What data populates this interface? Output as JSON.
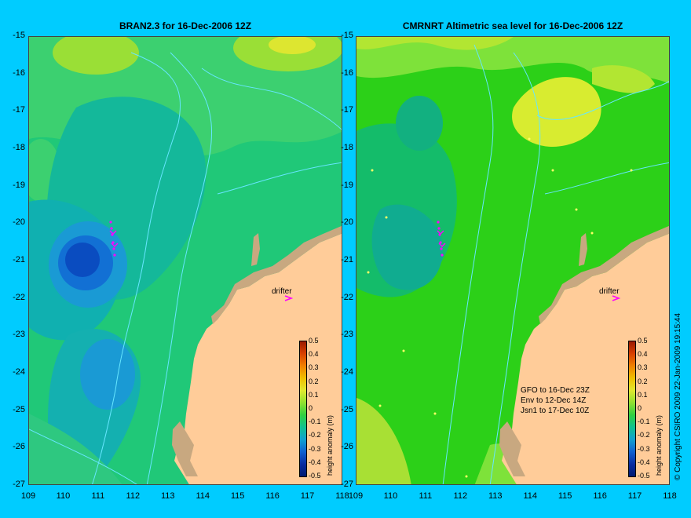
{
  "left_panel": {
    "title": "BRAN2.3 for 16-Dec-2006 12Z",
    "drifter_label": "drifter"
  },
  "right_panel": {
    "title": "CMRNRT Altimetric sea level  for 16-Dec-2006 12Z",
    "drifter_label": "drifter",
    "legend": [
      "GFO to 16-Dec 23Z",
      "Env to 12-Dec 14Z",
      "Jsn1 to 17-Dec 10Z"
    ]
  },
  "axes": {
    "y_ticks": [
      "-15",
      "-16",
      "-17",
      "-18",
      "-19",
      "-20",
      "-21",
      "-22",
      "-23",
      "-24",
      "-25",
      "-26",
      "-27"
    ],
    "x_ticks": [
      "109",
      "110",
      "111",
      "112",
      "113",
      "114",
      "115",
      "116",
      "117",
      "118"
    ]
  },
  "colorbar": {
    "title": "height anomaly (m)",
    "labels": [
      "0.5",
      "0.4",
      "0.3",
      "0.2",
      "0.1",
      "0",
      "-0.1",
      "-0.2",
      "-0.3",
      "-0.4",
      "-0.5"
    ]
  },
  "copyright": "© Copyright CSIRO 2009   22-Jan-2009 19:15:44",
  "colors": {
    "background": "#00ccff",
    "land": "#ffcc99",
    "coast": "#c8a880",
    "drifter": "#ff00ff",
    "contour": "#66e6ff"
  }
}
